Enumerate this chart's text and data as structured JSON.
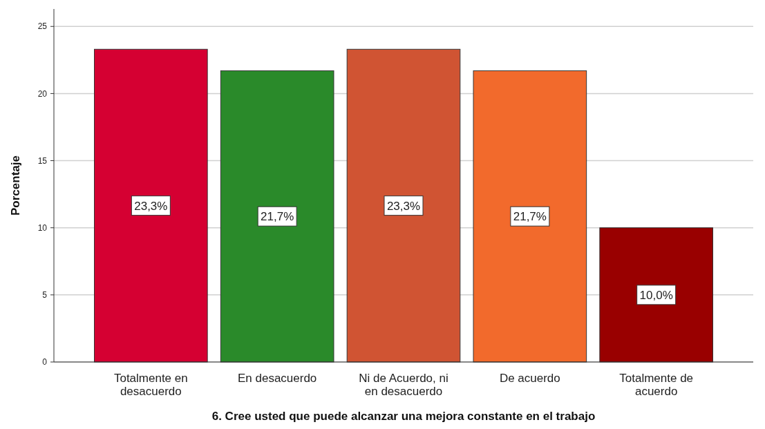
{
  "chart_data": {
    "type": "bar",
    "xlabel": "6. Cree usted que puede alcanzar una mejora constante en el trabajo",
    "ylabel": "Porcentaje",
    "categories": [
      "Totalmente en desacuerdo",
      "En desacuerdo",
      "Ni de Acuerdo, ni en desacuerdo",
      "De acuerdo",
      "Totalmente de acuerdo"
    ],
    "values": [
      23.3,
      21.7,
      23.3,
      21.7,
      10.0
    ],
    "colors": [
      "#d50032",
      "#2a8a2a",
      "#d05433",
      "#f26a2c",
      "#990000"
    ],
    "value_labels": [
      "23,3%",
      "21,7%",
      "23,3%",
      "21,7%",
      "10,0%"
    ],
    "ylim": [
      0,
      26.3
    ],
    "yticks": [
      0,
      5,
      10,
      15,
      20,
      25
    ],
    "grid": "y"
  }
}
